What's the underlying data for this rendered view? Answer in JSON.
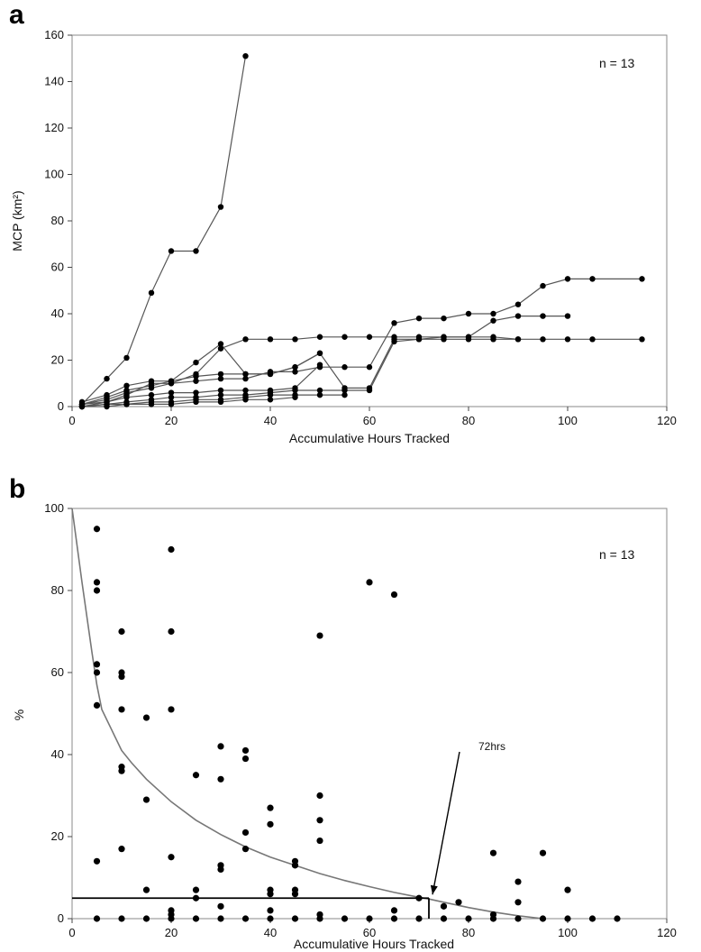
{
  "chart_data": [
    {
      "panel_label": "a",
      "type": "line",
      "xlabel": "Accumulative Hours Tracked",
      "ylabel": "MCP (km²)",
      "annotation": "n = 13",
      "xlim": [
        0,
        120
      ],
      "ylim": [
        0,
        160
      ],
      "xticks": [
        0,
        20,
        40,
        60,
        80,
        100,
        120
      ],
      "yticks": [
        0,
        20,
        40,
        60,
        80,
        100,
        120,
        140,
        160
      ],
      "grid": false,
      "series": [
        {
          "x": [
            2,
            7,
            11,
            16,
            20,
            25,
            30,
            35
          ],
          "y": [
            1,
            12,
            21,
            49,
            67,
            67,
            86,
            151
          ]
        },
        {
          "x": [
            2,
            7,
            11,
            16,
            20,
            25,
            30,
            35,
            40,
            45,
            50,
            55,
            60,
            65,
            70,
            75,
            80,
            85,
            90,
            95,
            100,
            105,
            115
          ],
          "y": [
            1,
            3,
            6,
            8,
            10,
            11,
            12,
            12,
            15,
            15,
            17,
            17,
            17,
            36,
            38,
            38,
            40,
            40,
            44,
            52,
            55,
            55,
            55
          ]
        },
        {
          "x": [
            2,
            7,
            11,
            16,
            20,
            25,
            30,
            35,
            40,
            45,
            50,
            55,
            60,
            65,
            70,
            75,
            80,
            85,
            90,
            95,
            100,
            105,
            115
          ],
          "y": [
            0,
            2,
            5,
            10,
            10,
            14,
            25,
            29,
            29,
            29,
            30,
            30,
            30,
            30,
            30,
            30,
            30,
            30,
            29,
            29,
            29,
            29,
            29
          ]
        },
        {
          "x": [
            2,
            7,
            11,
            16,
            20,
            25,
            30,
            35,
            40,
            45,
            50
          ],
          "y": [
            2,
            5,
            9,
            11,
            11,
            19,
            27,
            14,
            14,
            17,
            23
          ]
        },
        {
          "x": [
            2,
            7,
            11,
            16,
            20,
            25,
            30,
            35,
            40,
            45,
            50,
            55,
            60,
            65,
            70,
            75,
            80,
            85,
            90,
            95,
            100
          ],
          "y": [
            1,
            4,
            7,
            9,
            11,
            13,
            14,
            14,
            14,
            17,
            23,
            8,
            8,
            29,
            29,
            30,
            30,
            37,
            39,
            39,
            39
          ]
        },
        {
          "x": [
            2,
            7,
            11,
            16,
            20,
            25,
            30,
            35,
            40,
            45,
            50
          ],
          "y": [
            1,
            2,
            4,
            5,
            6,
            6,
            7,
            7,
            7,
            8,
            18
          ]
        },
        {
          "x": [
            2,
            7,
            11,
            16,
            20,
            25,
            30,
            35,
            40,
            45,
            50,
            55,
            60,
            65,
            70,
            75,
            80,
            85,
            90
          ],
          "y": [
            0,
            1,
            2,
            3,
            4,
            4,
            5,
            5,
            6,
            7,
            7,
            7,
            7,
            28,
            29,
            29,
            29,
            29,
            29
          ]
        },
        {
          "x": [
            2,
            7,
            11,
            16,
            20,
            25,
            30,
            35,
            40,
            45,
            50,
            55
          ],
          "y": [
            0,
            1,
            1,
            2,
            2,
            3,
            3,
            4,
            5,
            5,
            5,
            5
          ]
        },
        {
          "x": [
            2,
            7,
            11,
            16,
            20,
            25,
            30,
            35,
            40,
            45
          ],
          "y": [
            0,
            0,
            1,
            1,
            1,
            2,
            2,
            3,
            3,
            4
          ]
        }
      ]
    },
    {
      "panel_label": "b",
      "type": "scatter",
      "xlabel": "Accumulative Hours Tracked",
      "ylabel": "%",
      "annotation": "n = 13",
      "arrow_label": "72hrs",
      "xlim": [
        0,
        120
      ],
      "ylim": [
        0,
        100
      ],
      "xticks": [
        0,
        20,
        40,
        60,
        80,
        100,
        120
      ],
      "yticks": [
        0,
        20,
        40,
        60,
        80,
        100
      ],
      "grid": false,
      "points": {
        "x": [
          5,
          5,
          5,
          5,
          5,
          5,
          5,
          10,
          10,
          10,
          10,
          10,
          10,
          10,
          15,
          15,
          15,
          20,
          20,
          20,
          20,
          20,
          20,
          25,
          25,
          25,
          30,
          30,
          30,
          30,
          30,
          35,
          35,
          35,
          35,
          40,
          40,
          40,
          40,
          40,
          45,
          45,
          45,
          45,
          50,
          50,
          50,
          50,
          50,
          60,
          65,
          65,
          70,
          75,
          78,
          85,
          85,
          90,
          90,
          95,
          100,
          5,
          10,
          15,
          20,
          25,
          30,
          35,
          40,
          45,
          50,
          55,
          60,
          65,
          70,
          75,
          80,
          85,
          90,
          95,
          100,
          105,
          110
        ],
        "y": [
          95,
          82,
          80,
          62,
          60,
          52,
          14,
          70,
          60,
          59,
          51,
          37,
          36,
          17,
          49,
          29,
          7,
          90,
          70,
          51,
          15,
          2,
          1,
          35,
          7,
          5,
          42,
          34,
          13,
          12,
          3,
          41,
          39,
          21,
          17,
          27,
          23,
          7,
          6,
          2,
          14,
          13,
          7,
          6,
          69,
          30,
          24,
          19,
          1,
          82,
          79,
          2,
          5,
          3,
          4,
          16,
          1,
          9,
          4,
          16,
          7,
          0,
          0,
          0,
          0,
          0,
          0,
          0,
          0,
          0,
          0,
          0,
          0,
          0,
          0,
          0,
          0,
          0,
          0,
          0,
          0,
          0,
          0
        ]
      },
      "fit_curve": {
        "x": [
          0,
          2,
          4,
          5,
          6,
          8,
          10,
          12,
          15,
          20,
          25,
          30,
          35,
          40,
          45,
          50,
          55,
          60,
          65,
          70,
          72,
          75,
          80,
          85,
          90,
          95
        ],
        "y": [
          100,
          82,
          65,
          57,
          51,
          46,
          41,
          38,
          34,
          28.5,
          24,
          20.5,
          17.5,
          15,
          13,
          11,
          9.3,
          7.8,
          6.4,
          5.2,
          4.8,
          4,
          2.7,
          1.6,
          0.7,
          0
        ]
      },
      "reference": {
        "x": 72,
        "y": 5
      }
    }
  ]
}
